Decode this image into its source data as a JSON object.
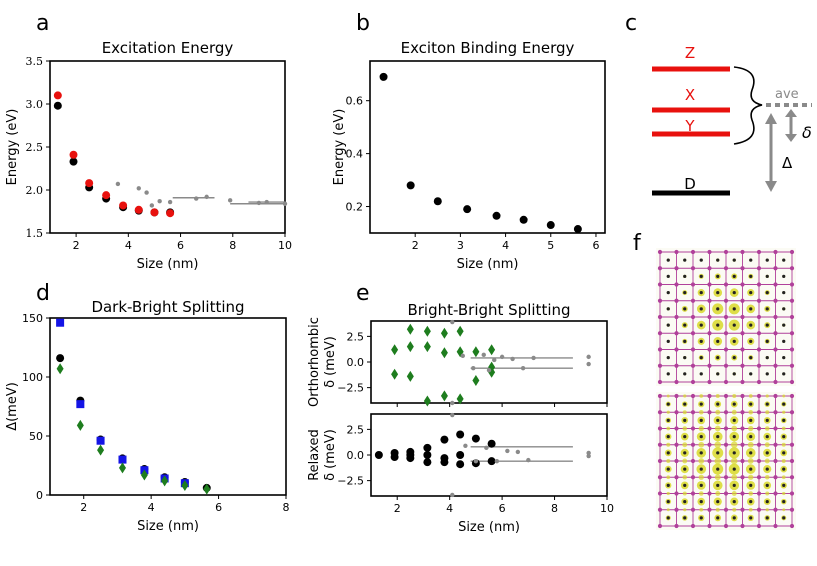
{
  "panel_letters": {
    "a": "a",
    "b": "b",
    "c": "c",
    "d": "d",
    "e": "e",
    "f": "f"
  },
  "colors": {
    "black": "#000000",
    "red": "#e8110e",
    "blue": "#1414e6",
    "green": "#1e7d1e",
    "gray": "#8a8a8a",
    "atom_pink": "#b0409a",
    "density_yellow": "#d8d829"
  },
  "chart_data": [
    {
      "id": "a",
      "type": "scatter",
      "title": "Excitation Energy",
      "xlabel": "Size (nm)",
      "ylabel": "Energy (eV)",
      "xlim": [
        1,
        10
      ],
      "ylim": [
        1.5,
        3.5
      ],
      "xticks": [
        2,
        4,
        6,
        8,
        10
      ],
      "yticks": [
        1.5,
        2.0,
        2.5,
        3.0,
        3.5
      ],
      "xtick_labels": [
        "2",
        "4",
        "6",
        "8",
        "10"
      ],
      "ytick_labels": [
        "1.5",
        "2.0",
        "2.5",
        "3.0",
        "3.5"
      ],
      "series": [
        {
          "name": "black",
          "color": "#000000",
          "x": [
            1.3,
            1.9,
            2.5,
            3.15,
            3.8,
            4.4,
            5.0,
            5.6
          ],
          "y": [
            2.98,
            2.33,
            2.03,
            1.9,
            1.8,
            1.76,
            1.74,
            1.74
          ]
        },
        {
          "name": "red",
          "color": "#e8110e",
          "x": [
            1.3,
            1.9,
            2.5,
            3.15,
            3.8,
            4.4,
            5.0,
            5.6
          ],
          "y": [
            3.1,
            2.41,
            2.08,
            1.94,
            1.82,
            1.77,
            1.74,
            1.73
          ]
        },
        {
          "name": "gray",
          "color": "#8a8a8a",
          "x": [
            3.6,
            4.4,
            4.7,
            4.9,
            5.2,
            5.6,
            6.6,
            7.0,
            7.9,
            9.0,
            9.3,
            10.0
          ],
          "y": [
            2.07,
            2.02,
            1.97,
            1.82,
            1.87,
            1.86,
            1.9,
            1.92,
            1.88,
            1.85,
            1.86,
            1.84
          ]
        }
      ],
      "segments": [
        {
          "x0": 5.7,
          "x1": 7.3,
          "y": 1.91
        },
        {
          "x0": 7.9,
          "x1": 10.0,
          "y": 1.84
        },
        {
          "x0": 8.6,
          "x1": 10.0,
          "y": 1.86
        }
      ]
    },
    {
      "id": "b",
      "type": "scatter",
      "title": "Exciton Binding Energy",
      "xlabel": "Size (nm)",
      "ylabel": "Energy (eV)",
      "xlim": [
        1,
        6.2
      ],
      "ylim": [
        0.1,
        0.75
      ],
      "xticks": [
        2,
        3,
        4,
        5,
        6
      ],
      "yticks": [
        0.2,
        0.4,
        0.6
      ],
      "xtick_labels": [
        "2",
        "3",
        "4",
        "5",
        "6"
      ],
      "ytick_labels": [
        "0.2",
        "0.4",
        "0.6"
      ],
      "series": [
        {
          "name": "black",
          "color": "#000000",
          "x": [
            1.3,
            1.9,
            2.5,
            3.15,
            3.8,
            4.4,
            5.0,
            5.6
          ],
          "y": [
            0.69,
            0.28,
            0.22,
            0.19,
            0.165,
            0.15,
            0.13,
            0.115
          ]
        }
      ]
    },
    {
      "id": "d",
      "type": "scatter",
      "title": "Dark-Bright Splitting",
      "xlabel": "Size (nm)",
      "ylabel": "Δ(meV)",
      "xlim": [
        1,
        8
      ],
      "ylim": [
        0,
        150
      ],
      "xticks": [
        2,
        4,
        6,
        8
      ],
      "yticks": [
        0,
        50,
        100,
        150
      ],
      "xtick_labels": [
        "2",
        "4",
        "6",
        "8"
      ],
      "ytick_labels": [
        "0",
        "50",
        "100",
        "150"
      ],
      "series": [
        {
          "name": "black",
          "color": "#000000",
          "marker": "circle",
          "x": [
            1.3,
            1.9,
            2.5,
            3.15,
            3.8,
            4.4,
            5.0,
            5.65
          ],
          "y": [
            116,
            80,
            47,
            31,
            22,
            15,
            11,
            6
          ]
        },
        {
          "name": "blue",
          "color": "#1414e6",
          "marker": "square",
          "x": [
            1.3,
            1.9,
            2.5,
            3.15,
            3.8,
            4.4,
            5.0
          ],
          "y": [
            146,
            77,
            46,
            30,
            21,
            14,
            10
          ]
        },
        {
          "name": "green",
          "color": "#1e7d1e",
          "marker": "diamond",
          "x": [
            1.3,
            1.9,
            2.5,
            3.15,
            3.8,
            4.4,
            5.0,
            5.65
          ],
          "y": [
            107,
            59,
            38,
            23,
            17,
            12,
            8,
            5
          ]
        }
      ]
    },
    {
      "id": "e_top",
      "type": "scatter",
      "title": "Bright-Bright Splitting",
      "xlabel": "",
      "ylabel": "Orthorhombic δ (meV)",
      "ylabel_lines": [
        "Orthorhombic",
        "δ (meV)"
      ],
      "xlim": [
        1,
        10
      ],
      "ylim": [
        -4,
        4
      ],
      "xticks": [
        2,
        4,
        6,
        8,
        10
      ],
      "yticks": [
        -2.5,
        0.0,
        2.5
      ],
      "xtick_labels": [],
      "ytick_labels": [
        "−2.5",
        "0.0",
        "2.5"
      ],
      "series": [
        {
          "name": "green",
          "color": "#1e7d1e",
          "marker": "diamond",
          "x": [
            1.9,
            1.9,
            2.5,
            2.5,
            2.5,
            3.15,
            3.15,
            3.15,
            3.8,
            3.8,
            3.8,
            4.4,
            4.4,
            4.4,
            5.0,
            5.0,
            5.6,
            5.6,
            5.6
          ],
          "y": [
            1.2,
            -1.2,
            3.2,
            1.5,
            -1.4,
            3.0,
            1.5,
            -3.8,
            2.8,
            0.9,
            -3.3,
            3.0,
            1.0,
            -3.6,
            1.0,
            -1.8,
            1.2,
            -0.5,
            -1.0
          ]
        },
        {
          "name": "gray",
          "color": "#8a8a8a",
          "marker": "circle",
          "x": [
            4.1,
            4.1,
            4.5,
            4.9,
            5.3,
            5.5,
            5.7,
            6.0,
            6.4,
            6.8,
            7.2,
            9.3,
            9.3
          ],
          "y": [
            3.9,
            -4.0,
            0.6,
            -0.6,
            0.7,
            -0.8,
            0.2,
            0.5,
            0.3,
            -0.6,
            0.4,
            0.5,
            -0.2
          ]
        }
      ],
      "segments": [
        {
          "x0": 4.8,
          "x1": 8.7,
          "y": 0.4
        },
        {
          "x0": 4.8,
          "x1": 8.7,
          "y": -0.6
        }
      ]
    },
    {
      "id": "e_bottom",
      "type": "scatter",
      "title": "",
      "xlabel": "Size (nm)",
      "ylabel": "Relaxed δ (meV)",
      "ylabel_lines": [
        "Relaxed",
        "δ (meV)"
      ],
      "xlim": [
        1,
        10
      ],
      "ylim": [
        -4,
        4
      ],
      "xticks": [
        2,
        4,
        6,
        8,
        10
      ],
      "yticks": [
        -2.5,
        0.0,
        2.5
      ],
      "xtick_labels": [
        "2",
        "4",
        "6",
        "8",
        "10"
      ],
      "ytick_labels": [
        "−2.5",
        "0.0",
        "2.5"
      ],
      "series": [
        {
          "name": "black",
          "color": "#000000",
          "marker": "circle",
          "x": [
            1.3,
            1.9,
            1.9,
            2.5,
            2.5,
            2.5,
            3.15,
            3.15,
            3.15,
            3.8,
            3.8,
            3.8,
            4.4,
            4.4,
            4.4,
            5.0,
            5.0,
            5.6,
            5.6
          ],
          "y": [
            0.0,
            0.2,
            -0.2,
            0.3,
            0.0,
            -0.3,
            0.7,
            0.0,
            -0.7,
            1.5,
            -0.3,
            -0.7,
            2.0,
            0.0,
            -0.9,
            1.6,
            -0.8,
            1.1,
            -0.6
          ]
        },
        {
          "name": "gray",
          "color": "#8a8a8a",
          "marker": "circle",
          "x": [
            4.1,
            4.1,
            4.6,
            5.0,
            5.4,
            5.8,
            6.2,
            6.6,
            7.0,
            9.3,
            9.3
          ],
          "y": [
            3.9,
            -3.9,
            0.9,
            -0.6,
            0.7,
            -0.6,
            0.4,
            0.3,
            -0.5,
            0.2,
            -0.1
          ]
        }
      ],
      "segments": [
        {
          "x0": 4.8,
          "x1": 8.7,
          "y": 0.8
        },
        {
          "x0": 4.8,
          "x1": 8.7,
          "y": -0.6
        }
      ]
    }
  ],
  "diagram_c": {
    "levels": [
      {
        "label": "Z",
        "color": "#e8110e"
      },
      {
        "label": "X",
        "color": "#e8110e"
      },
      {
        "label": "Y",
        "color": "#e8110e"
      },
      {
        "label": "D",
        "color": "#000000"
      }
    ],
    "ave_label": "ave",
    "delta_small": "δ",
    "delta_big": "Δ"
  },
  "lattice_f": {
    "atom_color": "#b0409a",
    "density_color": "#d8d829"
  }
}
